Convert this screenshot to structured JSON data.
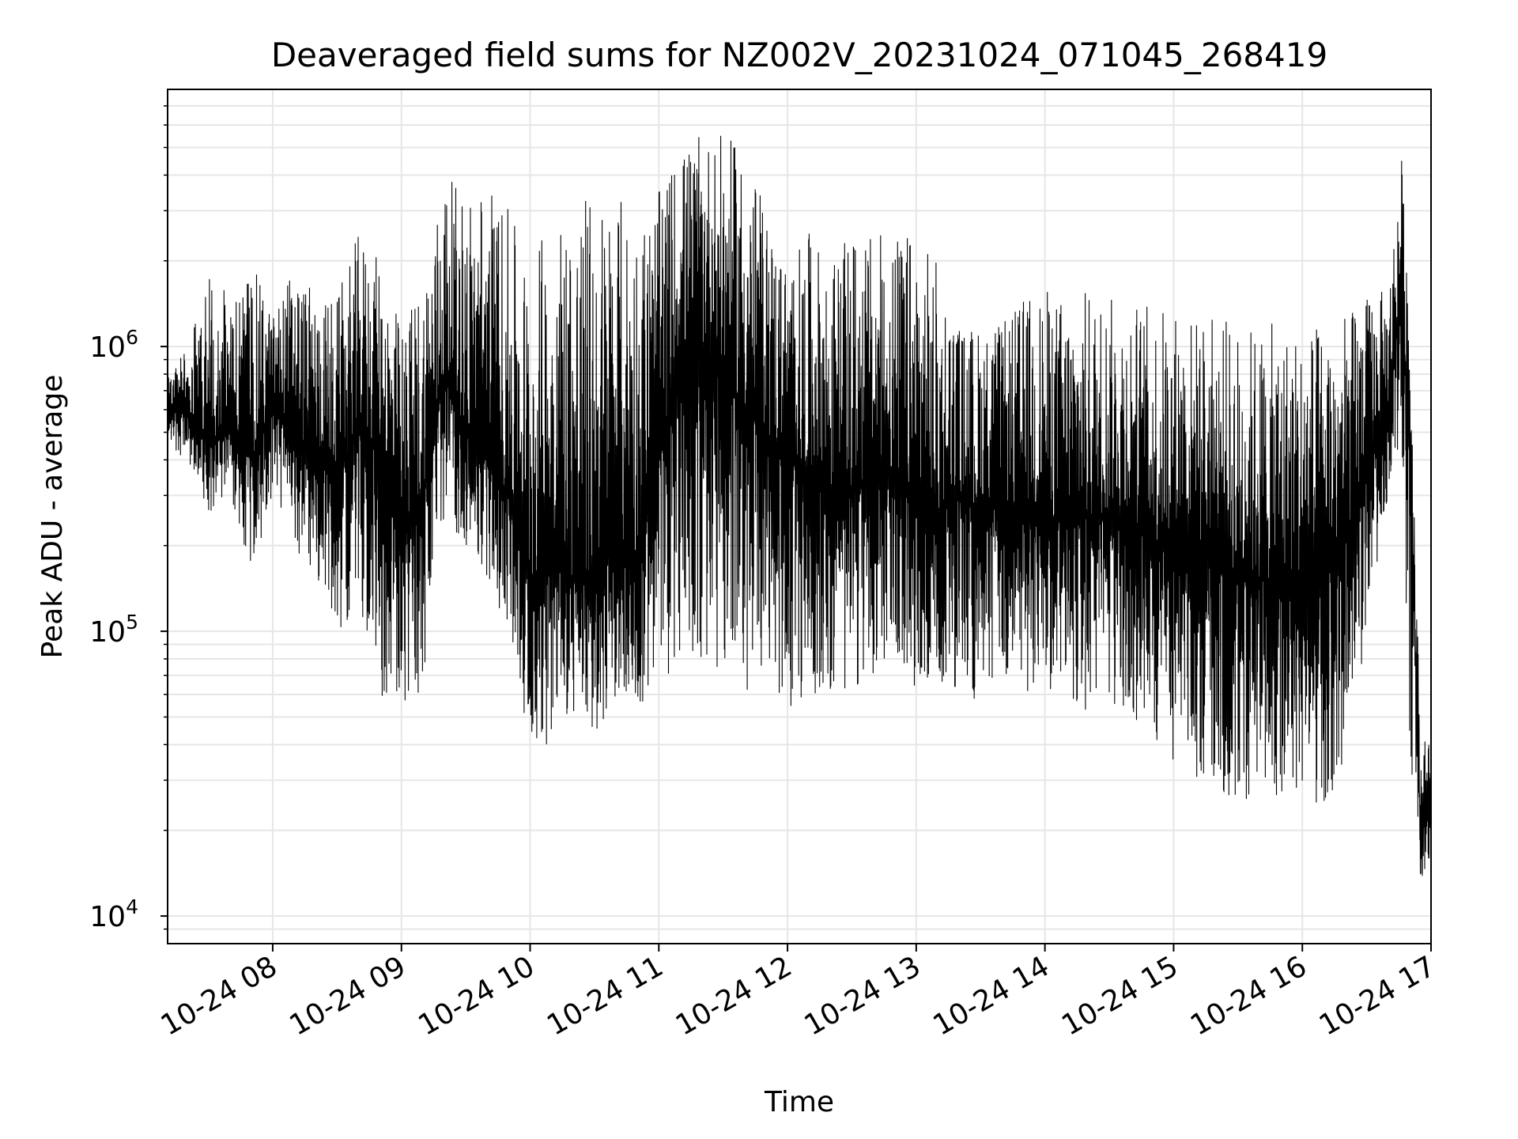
{
  "chart_data": {
    "type": "line",
    "title": "Deaveraged field sums for NZ002V_20231024_071045_268419",
    "xlabel": "Time",
    "ylabel": "Peak ADU - average",
    "yscale": "log",
    "ylim": [
      8000,
      8000000
    ],
    "xlim": [
      "2023-10-24 07:11",
      "2023-10-24 17:00"
    ],
    "grid": true,
    "line_color": "#000000",
    "grid_color": "#e6e6e6",
    "x_ticks": [
      {
        "value": "2023-10-24 08:00",
        "label": "10-24 08"
      },
      {
        "value": "2023-10-24 09:00",
        "label": "10-24 09"
      },
      {
        "value": "2023-10-24 10:00",
        "label": "10-24 10"
      },
      {
        "value": "2023-10-24 11:00",
        "label": "10-24 11"
      },
      {
        "value": "2023-10-24 12:00",
        "label": "10-24 12"
      },
      {
        "value": "2023-10-24 13:00",
        "label": "10-24 13"
      },
      {
        "value": "2023-10-24 14:00",
        "label": "10-24 14"
      },
      {
        "value": "2023-10-24 15:00",
        "label": "10-24 15"
      },
      {
        "value": "2023-10-24 16:00",
        "label": "10-24 16"
      },
      {
        "value": "2023-10-24 17:00",
        "label": "10-24 17"
      }
    ],
    "y_ticks": [
      {
        "value": 10000,
        "base": "10",
        "exp": "4"
      },
      {
        "value": 100000,
        "base": "10",
        "exp": "5"
      },
      {
        "value": 1000000,
        "base": "10",
        "exp": "6"
      }
    ],
    "series": [
      {
        "x": [
          "2023-10-24 07:11",
          "2023-10-24 07:20",
          "2023-10-24 07:30",
          "2023-10-24 07:40",
          "2023-10-24 07:50",
          "2023-10-24 08:00",
          "2023-10-24 08:10",
          "2023-10-24 08:20",
          "2023-10-24 08:30",
          "2023-10-24 08:40",
          "2023-10-24 08:50",
          "2023-10-24 09:00",
          "2023-10-24 09:10",
          "2023-10-24 09:20",
          "2023-10-24 09:30",
          "2023-10-24 09:40",
          "2023-10-24 09:50",
          "2023-10-24 10:00",
          "2023-10-24 10:10",
          "2023-10-24 10:20",
          "2023-10-24 10:30",
          "2023-10-24 10:40",
          "2023-10-24 10:50",
          "2023-10-24 11:00",
          "2023-10-24 11:10",
          "2023-10-24 11:20",
          "2023-10-24 11:30",
          "2023-10-24 11:40",
          "2023-10-24 11:50",
          "2023-10-24 12:00",
          "2023-10-24 12:10",
          "2023-10-24 12:20",
          "2023-10-24 12:30",
          "2023-10-24 12:40",
          "2023-10-24 12:50",
          "2023-10-24 13:00",
          "2023-10-24 13:10",
          "2023-10-24 13:20",
          "2023-10-24 13:30",
          "2023-10-24 13:40",
          "2023-10-24 13:50",
          "2023-10-24 14:00",
          "2023-10-24 14:10",
          "2023-10-24 14:20",
          "2023-10-24 14:30",
          "2023-10-24 14:40",
          "2023-10-24 14:50",
          "2023-10-24 15:00",
          "2023-10-24 15:10",
          "2023-10-24 15:20",
          "2023-10-24 15:30",
          "2023-10-24 15:40",
          "2023-10-24 15:50",
          "2023-10-24 16:00",
          "2023-10-24 16:10",
          "2023-10-24 16:20",
          "2023-10-24 16:30",
          "2023-10-24 16:40",
          "2023-10-24 16:46",
          "2023-10-24 16:50",
          "2023-10-24 16:55",
          "2023-10-24 17:00"
        ],
        "mid": [
          600000,
          600000,
          450000,
          500000,
          400000,
          600000,
          500000,
          400000,
          350000,
          500000,
          450000,
          200000,
          300000,
          800000,
          500000,
          400000,
          300000,
          150000,
          180000,
          150000,
          150000,
          200000,
          180000,
          400000,
          900000,
          1000000,
          800000,
          600000,
          500000,
          400000,
          350000,
          300000,
          300000,
          350000,
          350000,
          300000,
          250000,
          300000,
          250000,
          300000,
          250000,
          250000,
          250000,
          250000,
          250000,
          250000,
          200000,
          200000,
          200000,
          180000,
          150000,
          150000,
          150000,
          150000,
          150000,
          200000,
          400000,
          600000,
          1500000,
          500000,
          22000,
          25000
        ],
        "high": [
          800000,
          1000000,
          2000000,
          1500000,
          2000000,
          1300000,
          2000000,
          1500000,
          1500000,
          2500000,
          2000000,
          1200000,
          1800000,
          4000000,
          3500000,
          4000000,
          3000000,
          2000000,
          3000000,
          3500000,
          3500000,
          3500000,
          3000000,
          3500000,
          5000000,
          5500000,
          5500000,
          5000000,
          3000000,
          2000000,
          2500000,
          2000000,
          2500000,
          2500000,
          2500000,
          2500000,
          2000000,
          1200000,
          1200000,
          1200000,
          1500000,
          1600000,
          1500000,
          1600000,
          1500000,
          1500000,
          1400000,
          1400000,
          1300000,
          1300000,
          1200000,
          1200000,
          1200000,
          1200000,
          1200000,
          1300000,
          1500000,
          1600000,
          5000000,
          2000000,
          40000,
          45000
        ],
        "low": [
          450000,
          400000,
          250000,
          300000,
          150000,
          300000,
          200000,
          150000,
          100000,
          120000,
          60000,
          50000,
          60000,
          250000,
          200000,
          150000,
          100000,
          40000,
          40000,
          50000,
          40000,
          60000,
          50000,
          60000,
          80000,
          70000,
          70000,
          60000,
          60000,
          50000,
          60000,
          60000,
          60000,
          70000,
          70000,
          60000,
          70000,
          50000,
          60000,
          60000,
          60000,
          60000,
          60000,
          50000,
          50000,
          45000,
          40000,
          35000,
          30000,
          25000,
          25000,
          25000,
          25000,
          25000,
          25000,
          30000,
          100000,
          300000,
          500000,
          40000,
          12000,
          17000
        ]
      }
    ]
  }
}
